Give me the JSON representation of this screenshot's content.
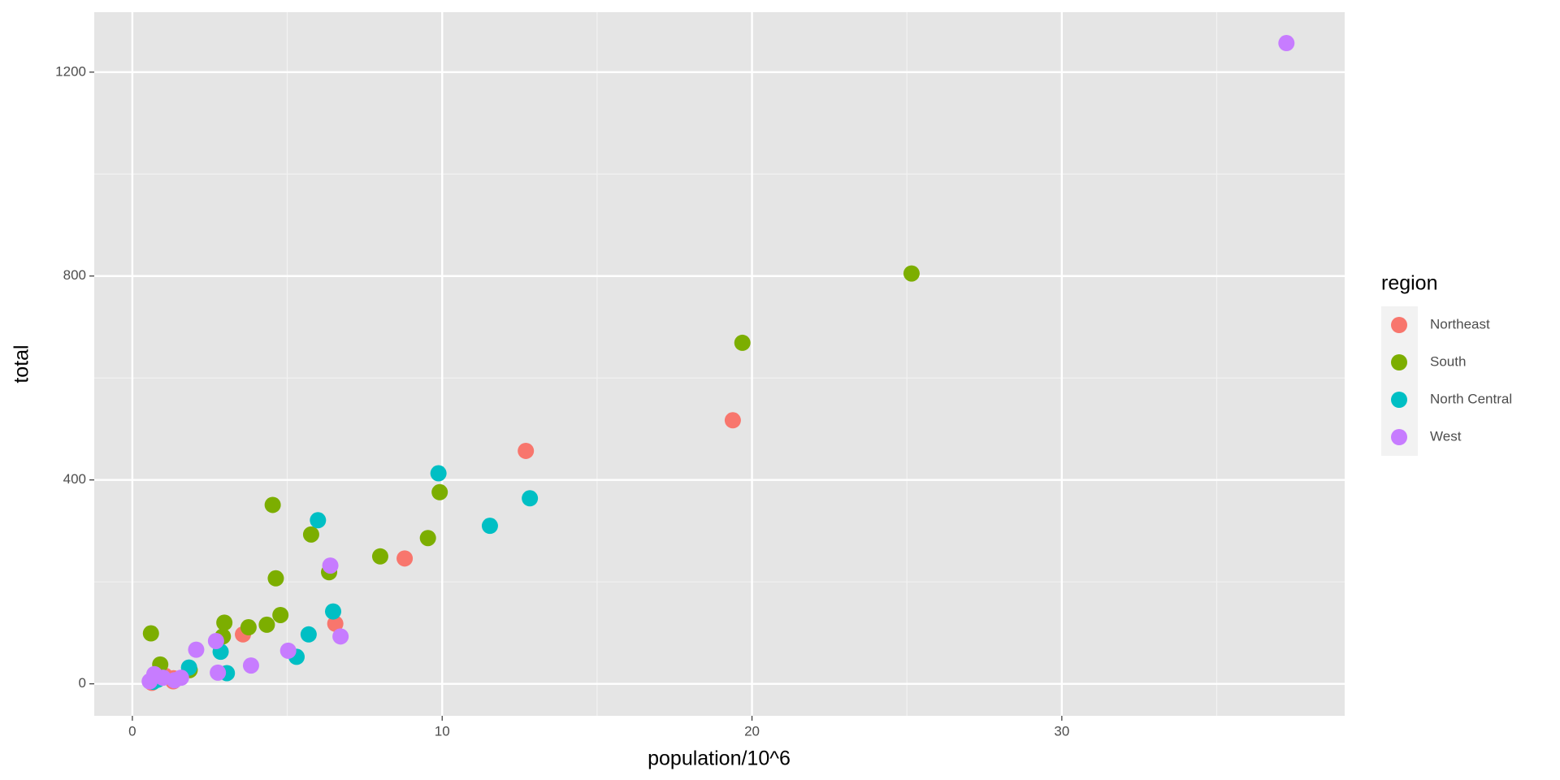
{
  "chart_data": {
    "type": "scatter",
    "x_label": "population/10^6",
    "y_label": "total",
    "legend_title": "region",
    "xlim": [
      -1.23,
      39.13
    ],
    "ylim": [
      -62.7,
      1317.6
    ],
    "xticks": [
      0,
      10,
      20,
      30
    ],
    "yticks": [
      0,
      400,
      800,
      1200
    ],
    "xminor": [
      5,
      15,
      25,
      35
    ],
    "yminor": [
      200,
      600,
      1000
    ],
    "grid": true,
    "legend": "right",
    "series": [
      {
        "name": "Northeast",
        "color": "#F8766D",
        "x": [
          3.57,
          1.33,
          6.55,
          1.32,
          8.79,
          19.38,
          12.7,
          1.05,
          0.63
        ],
        "values": [
          97,
          11,
          118,
          5,
          246,
          517,
          457,
          16,
          2
        ]
      },
      {
        "name": "South",
        "color": "#7CAE00",
        "x": [
          4.78,
          2.92,
          0.9,
          0.6,
          19.69,
          9.92,
          4.34,
          4.53,
          5.77,
          2.97,
          9.54,
          3.75,
          4.63,
          6.35,
          25.15,
          8.0,
          1.85
        ],
        "values": [
          135,
          93,
          38,
          99,
          669,
          376,
          116,
          351,
          293,
          120,
          286,
          111,
          207,
          219,
          805,
          250,
          27
        ]
      },
      {
        "name": "North Central",
        "color": "#00BFC4",
        "x": [
          12.83,
          6.48,
          3.05,
          2.85,
          9.88,
          5.3,
          5.99,
          1.83,
          0.67,
          11.54,
          0.81,
          5.69
        ],
        "values": [
          364,
          142,
          21,
          63,
          413,
          53,
          321,
          32,
          4,
          310,
          8,
          97
        ]
      },
      {
        "name": "West",
        "color": "#C77CFF",
        "x": [
          0.71,
          6.39,
          37.25,
          5.03,
          1.36,
          1.57,
          0.99,
          2.7,
          2.06,
          3.83,
          2.76,
          6.72,
          0.56
        ],
        "values": [
          19,
          232,
          1257,
          65,
          7,
          12,
          12,
          84,
          67,
          36,
          22,
          93,
          5
        ]
      }
    ]
  }
}
